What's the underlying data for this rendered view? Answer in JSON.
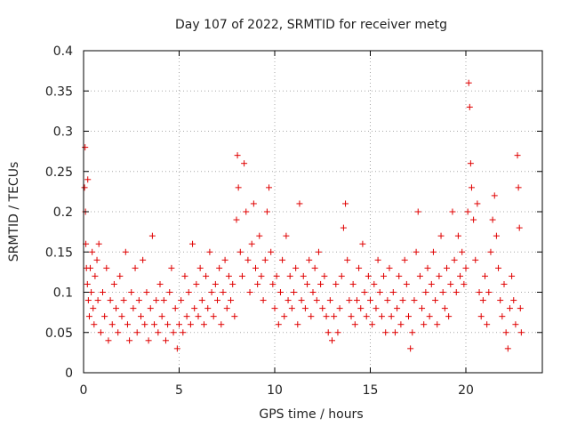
{
  "chart_data": {
    "type": "scatter",
    "title": "Day 107 of 2022, SRMTID for receiver metg",
    "xlabel": "GPS time / hours",
    "ylabel": "SRMTID / TECUs",
    "xlim": [
      0,
      24
    ],
    "ylim": [
      0,
      0.4
    ],
    "xticks": [
      0,
      5,
      10,
      15,
      20
    ],
    "xtick_labels": [
      "0",
      "5",
      "10",
      "15",
      "20"
    ],
    "yticks": [
      0,
      0.05,
      0.1,
      0.15,
      0.2,
      0.25,
      0.3,
      0.35,
      0.4
    ],
    "ytick_labels": [
      "0",
      "0.05",
      "0.1",
      "0.15",
      "0.2",
      "0.25",
      "0.3",
      "0.35",
      "0.4"
    ],
    "grid": true,
    "marker": "+",
    "color": "#e00000",
    "series": [
      {
        "name": "metg",
        "points": [
          [
            0.05,
            0.23
          ],
          [
            0.08,
            0.28
          ],
          [
            0.1,
            0.2
          ],
          [
            0.12,
            0.16
          ],
          [
            0.15,
            0.13
          ],
          [
            0.2,
            0.11
          ],
          [
            0.22,
            0.24
          ],
          [
            0.25,
            0.09
          ],
          [
            0.3,
            0.07
          ],
          [
            0.35,
            0.13
          ],
          [
            0.4,
            0.1
          ],
          [
            0.45,
            0.15
          ],
          [
            0.5,
            0.08
          ],
          [
            0.55,
            0.06
          ],
          [
            0.6,
            0.12
          ],
          [
            0.7,
            0.14
          ],
          [
            0.75,
            0.09
          ],
          [
            0.8,
            0.16
          ],
          [
            0.9,
            0.05
          ],
          [
            1.0,
            0.1
          ],
          [
            1.1,
            0.07
          ],
          [
            1.2,
            0.13
          ],
          [
            1.3,
            0.04
          ],
          [
            1.4,
            0.09
          ],
          [
            1.5,
            0.06
          ],
          [
            1.6,
            0.11
          ],
          [
            1.7,
            0.08
          ],
          [
            1.8,
            0.05
          ],
          [
            1.9,
            0.12
          ],
          [
            2.0,
            0.07
          ],
          [
            2.1,
            0.09
          ],
          [
            2.2,
            0.15
          ],
          [
            2.3,
            0.06
          ],
          [
            2.4,
            0.04
          ],
          [
            2.5,
            0.1
          ],
          [
            2.6,
            0.08
          ],
          [
            2.7,
            0.13
          ],
          [
            2.8,
            0.05
          ],
          [
            2.9,
            0.09
          ],
          [
            3.0,
            0.07
          ],
          [
            3.1,
            0.14
          ],
          [
            3.2,
            0.06
          ],
          [
            3.3,
            0.1
          ],
          [
            3.4,
            0.04
          ],
          [
            3.5,
            0.08
          ],
          [
            3.6,
            0.17
          ],
          [
            3.7,
            0.06
          ],
          [
            3.8,
            0.09
          ],
          [
            3.9,
            0.05
          ],
          [
            4.0,
            0.11
          ],
          [
            4.1,
            0.07
          ],
          [
            4.2,
            0.09
          ],
          [
            4.3,
            0.04
          ],
          [
            4.4,
            0.06
          ],
          [
            4.5,
            0.1
          ],
          [
            4.6,
            0.13
          ],
          [
            4.7,
            0.05
          ],
          [
            4.8,
            0.08
          ],
          [
            4.9,
            0.03
          ],
          [
            5.0,
            0.06
          ],
          [
            5.1,
            0.09
          ],
          [
            5.2,
            0.05
          ],
          [
            5.3,
            0.12
          ],
          [
            5.4,
            0.07
          ],
          [
            5.5,
            0.1
          ],
          [
            5.6,
            0.06
          ],
          [
            5.7,
            0.16
          ],
          [
            5.8,
            0.08
          ],
          [
            5.9,
            0.11
          ],
          [
            6.0,
            0.07
          ],
          [
            6.1,
            0.13
          ],
          [
            6.2,
            0.09
          ],
          [
            6.3,
            0.06
          ],
          [
            6.4,
            0.12
          ],
          [
            6.5,
            0.08
          ],
          [
            6.6,
            0.15
          ],
          [
            6.7,
            0.1
          ],
          [
            6.8,
            0.07
          ],
          [
            6.9,
            0.11
          ],
          [
            7.0,
            0.09
          ],
          [
            7.1,
            0.13
          ],
          [
            7.2,
            0.06
          ],
          [
            7.3,
            0.1
          ],
          [
            7.4,
            0.14
          ],
          [
            7.5,
            0.08
          ],
          [
            7.6,
            0.12
          ],
          [
            7.7,
            0.09
          ],
          [
            7.8,
            0.11
          ],
          [
            7.9,
            0.07
          ],
          [
            8.0,
            0.19
          ],
          [
            8.05,
            0.27
          ],
          [
            8.1,
            0.23
          ],
          [
            8.2,
            0.15
          ],
          [
            8.3,
            0.12
          ],
          [
            8.4,
            0.26
          ],
          [
            8.5,
            0.2
          ],
          [
            8.6,
            0.14
          ],
          [
            8.7,
            0.1
          ],
          [
            8.8,
            0.16
          ],
          [
            8.9,
            0.21
          ],
          [
            9.0,
            0.13
          ],
          [
            9.1,
            0.11
          ],
          [
            9.2,
            0.17
          ],
          [
            9.3,
            0.12
          ],
          [
            9.4,
            0.09
          ],
          [
            9.5,
            0.14
          ],
          [
            9.6,
            0.2
          ],
          [
            9.7,
            0.23
          ],
          [
            9.8,
            0.15
          ],
          [
            9.9,
            0.11
          ],
          [
            10.0,
            0.08
          ],
          [
            10.1,
            0.12
          ],
          [
            10.2,
            0.06
          ],
          [
            10.3,
            0.1
          ],
          [
            10.4,
            0.14
          ],
          [
            10.5,
            0.07
          ],
          [
            10.6,
            0.17
          ],
          [
            10.7,
            0.09
          ],
          [
            10.8,
            0.12
          ],
          [
            10.9,
            0.08
          ],
          [
            11.0,
            0.1
          ],
          [
            11.1,
            0.13
          ],
          [
            11.2,
            0.06
          ],
          [
            11.3,
            0.21
          ],
          [
            11.4,
            0.09
          ],
          [
            11.5,
            0.12
          ],
          [
            11.6,
            0.08
          ],
          [
            11.7,
            0.11
          ],
          [
            11.8,
            0.14
          ],
          [
            11.9,
            0.07
          ],
          [
            12.0,
            0.1
          ],
          [
            12.1,
            0.13
          ],
          [
            12.2,
            0.09
          ],
          [
            12.3,
            0.15
          ],
          [
            12.4,
            0.11
          ],
          [
            12.5,
            0.08
          ],
          [
            12.6,
            0.12
          ],
          [
            12.7,
            0.07
          ],
          [
            12.8,
            0.05
          ],
          [
            12.9,
            0.09
          ],
          [
            13.0,
            0.04
          ],
          [
            13.1,
            0.07
          ],
          [
            13.2,
            0.11
          ],
          [
            13.3,
            0.05
          ],
          [
            13.4,
            0.08
          ],
          [
            13.5,
            0.12
          ],
          [
            13.6,
            0.18
          ],
          [
            13.7,
            0.21
          ],
          [
            13.8,
            0.14
          ],
          [
            13.9,
            0.09
          ],
          [
            14.0,
            0.07
          ],
          [
            14.1,
            0.11
          ],
          [
            14.2,
            0.06
          ],
          [
            14.3,
            0.09
          ],
          [
            14.4,
            0.13
          ],
          [
            14.5,
            0.08
          ],
          [
            14.6,
            0.16
          ],
          [
            14.7,
            0.1
          ],
          [
            14.8,
            0.07
          ],
          [
            14.9,
            0.12
          ],
          [
            15.0,
            0.09
          ],
          [
            15.1,
            0.06
          ],
          [
            15.2,
            0.11
          ],
          [
            15.3,
            0.08
          ],
          [
            15.4,
            0.14
          ],
          [
            15.5,
            0.1
          ],
          [
            15.6,
            0.07
          ],
          [
            15.7,
            0.12
          ],
          [
            15.8,
            0.05
          ],
          [
            15.9,
            0.09
          ],
          [
            16.0,
            0.13
          ],
          [
            16.1,
            0.07
          ],
          [
            16.2,
            0.1
          ],
          [
            16.3,
            0.05
          ],
          [
            16.4,
            0.08
          ],
          [
            16.5,
            0.12
          ],
          [
            16.6,
            0.06
          ],
          [
            16.7,
            0.09
          ],
          [
            16.8,
            0.14
          ],
          [
            16.9,
            0.11
          ],
          [
            17.0,
            0.07
          ],
          [
            17.1,
            0.03
          ],
          [
            17.2,
            0.05
          ],
          [
            17.3,
            0.09
          ],
          [
            17.4,
            0.15
          ],
          [
            17.5,
            0.2
          ],
          [
            17.6,
            0.12
          ],
          [
            17.7,
            0.08
          ],
          [
            17.8,
            0.06
          ],
          [
            17.9,
            0.1
          ],
          [
            18.0,
            0.13
          ],
          [
            18.1,
            0.07
          ],
          [
            18.2,
            0.11
          ],
          [
            18.3,
            0.15
          ],
          [
            18.4,
            0.09
          ],
          [
            18.5,
            0.06
          ],
          [
            18.6,
            0.12
          ],
          [
            18.7,
            0.17
          ],
          [
            18.8,
            0.1
          ],
          [
            18.9,
            0.08
          ],
          [
            19.0,
            0.13
          ],
          [
            19.1,
            0.07
          ],
          [
            19.2,
            0.11
          ],
          [
            19.3,
            0.2
          ],
          [
            19.4,
            0.14
          ],
          [
            19.5,
            0.1
          ],
          [
            19.6,
            0.17
          ],
          [
            19.7,
            0.12
          ],
          [
            19.8,
            0.15
          ],
          [
            19.9,
            0.11
          ],
          [
            20.0,
            0.13
          ],
          [
            20.1,
            0.2
          ],
          [
            20.15,
            0.36
          ],
          [
            20.2,
            0.33
          ],
          [
            20.25,
            0.26
          ],
          [
            20.3,
            0.23
          ],
          [
            20.4,
            0.19
          ],
          [
            20.5,
            0.14
          ],
          [
            20.6,
            0.21
          ],
          [
            20.7,
            0.1
          ],
          [
            20.8,
            0.07
          ],
          [
            20.9,
            0.09
          ],
          [
            21.0,
            0.12
          ],
          [
            21.1,
            0.06
          ],
          [
            21.2,
            0.1
          ],
          [
            21.3,
            0.15
          ],
          [
            21.4,
            0.19
          ],
          [
            21.5,
            0.22
          ],
          [
            21.6,
            0.17
          ],
          [
            21.7,
            0.13
          ],
          [
            21.8,
            0.09
          ],
          [
            21.9,
            0.07
          ],
          [
            22.0,
            0.11
          ],
          [
            22.1,
            0.05
          ],
          [
            22.2,
            0.03
          ],
          [
            22.3,
            0.08
          ],
          [
            22.4,
            0.12
          ],
          [
            22.5,
            0.09
          ],
          [
            22.6,
            0.06
          ],
          [
            22.7,
            0.27
          ],
          [
            22.75,
            0.23
          ],
          [
            22.8,
            0.18
          ],
          [
            22.85,
            0.08
          ],
          [
            22.9,
            0.05
          ]
        ]
      }
    ]
  }
}
